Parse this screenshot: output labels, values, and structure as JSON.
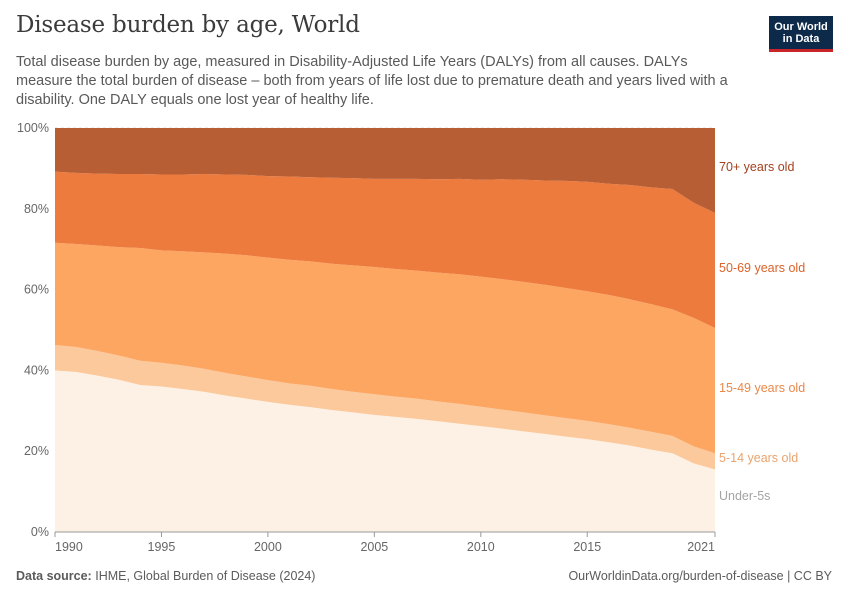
{
  "header": {
    "title": "Disease burden by age, World",
    "subtitle": "Total disease burden by age, measured in Disability-Adjusted Life Years (DALYs) from all causes. DALYs measure the total burden of disease – both from years of life lost due to premature death and years lived with a disability. One DALY equals one lost year of healthy life."
  },
  "logo": {
    "line1": "Our World",
    "line2": "in Data"
  },
  "footer": {
    "source_label": "Data source:",
    "source_text": "IHME, Global Burden of Disease (2024)",
    "url": "OurWorldinData.org/burden-of-disease | CC BY"
  },
  "chart_data": {
    "type": "area",
    "stacked": true,
    "stack_mode": "percent",
    "x": [
      1990,
      1991,
      1992,
      1993,
      1994,
      1995,
      1996,
      1997,
      1998,
      1999,
      2000,
      2001,
      2002,
      2003,
      2004,
      2005,
      2006,
      2007,
      2008,
      2009,
      2010,
      2011,
      2012,
      2013,
      2014,
      2015,
      2016,
      2017,
      2018,
      2019,
      2020,
      2021
    ],
    "xlim": [
      1990,
      2021
    ],
    "x_ticks": [
      "1990",
      "1995",
      "2000",
      "2005",
      "2010",
      "2015",
      "2021"
    ],
    "ylim": [
      0,
      100
    ],
    "y_ticks": [
      "0%",
      "20%",
      "40%",
      "60%",
      "80%",
      "100%"
    ],
    "grid": "horizontal-dashed",
    "legend": "right-inline",
    "series": [
      {
        "name": "Under-5s",
        "color": "#fdf1e6",
        "label_color": "#a4a4a4",
        "values": [
          40.0,
          39.6,
          38.7,
          37.7,
          36.4,
          36.0,
          35.4,
          34.7,
          33.8,
          33.0,
          32.2,
          31.5,
          30.9,
          30.2,
          29.6,
          29.0,
          28.5,
          28.0,
          27.4,
          26.8,
          26.2,
          25.6,
          24.9,
          24.3,
          23.6,
          23.0,
          22.2,
          21.4,
          20.4,
          19.5,
          17.0,
          15.5
        ]
      },
      {
        "name": "5-14 years old",
        "color": "#fbc99b",
        "label_color": "#e8a471",
        "values": [
          6.3,
          6.2,
          6.1,
          6.0,
          6.0,
          5.9,
          5.8,
          5.7,
          5.6,
          5.5,
          5.4,
          5.3,
          5.3,
          5.2,
          5.1,
          5.1,
          5.0,
          5.0,
          4.9,
          4.9,
          4.8,
          4.7,
          4.7,
          4.6,
          4.6,
          4.5,
          4.5,
          4.4,
          4.4,
          4.3,
          4.2,
          4.0
        ]
      },
      {
        "name": "15-49 years old",
        "color": "#fca662",
        "label_color": "#e8894a",
        "values": [
          25.3,
          25.5,
          26.1,
          26.8,
          27.9,
          27.8,
          28.3,
          28.8,
          29.5,
          30.0,
          30.3,
          30.6,
          30.8,
          31.0,
          31.3,
          31.5,
          31.6,
          31.7,
          31.9,
          32.1,
          32.2,
          32.3,
          32.3,
          32.3,
          32.2,
          32.1,
          32.0,
          31.8,
          31.6,
          31.3,
          31.8,
          31.0
        ]
      },
      {
        "name": "50-69 years old",
        "color": "#ee7b3e",
        "label_color": "#d9632a",
        "values": [
          17.6,
          17.6,
          17.8,
          18.1,
          18.3,
          18.8,
          19.0,
          19.4,
          19.6,
          19.9,
          20.2,
          20.6,
          20.8,
          21.3,
          21.6,
          21.8,
          22.3,
          22.7,
          23.1,
          23.6,
          24.0,
          24.7,
          25.3,
          25.8,
          26.5,
          27.1,
          27.5,
          28.3,
          28.9,
          29.8,
          28.5,
          28.5
        ]
      },
      {
        "name": "70+ years old",
        "color": "#b75e34",
        "label_color": "#a3401c",
        "values": [
          10.8,
          11.1,
          11.3,
          11.4,
          11.4,
          11.5,
          11.5,
          11.4,
          11.5,
          11.6,
          11.9,
          12.0,
          12.2,
          12.3,
          12.4,
          12.6,
          12.6,
          12.6,
          12.7,
          12.6,
          12.8,
          12.7,
          12.8,
          13.0,
          13.1,
          13.3,
          13.8,
          14.1,
          14.7,
          15.1,
          18.5,
          21.0
        ]
      }
    ]
  }
}
